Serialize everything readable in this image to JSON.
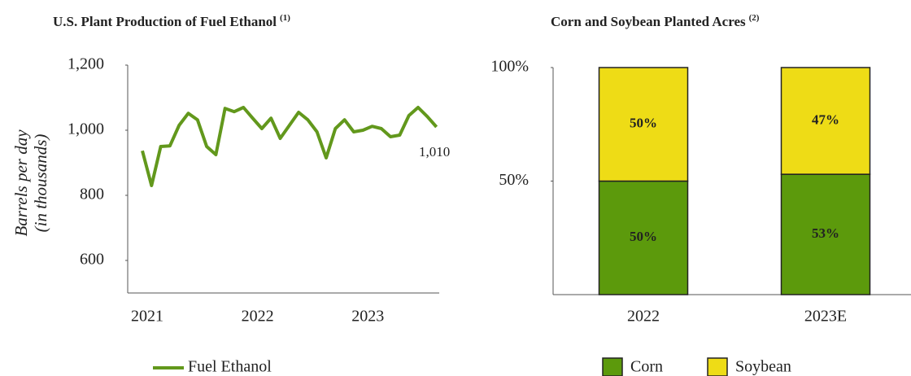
{
  "chart_data": [
    {
      "type": "line",
      "title": "U.S. Plant Production of Fuel Ethanol",
      "title_footnote": "(1)",
      "ylabel": [
        "Barrels per day",
        "(in thousands)"
      ],
      "categories": [
        "2021",
        null,
        null,
        null,
        null,
        null,
        null,
        null,
        null,
        null,
        null,
        null,
        "2022",
        null,
        null,
        null,
        null,
        null,
        null,
        null,
        null,
        null,
        null,
        null,
        "2023",
        null,
        null,
        null,
        null,
        null,
        null,
        null,
        null
      ],
      "series": [
        {
          "name": "Fuel Ethanol",
          "color": "#62981c",
          "values": [
            937,
            830,
            950,
            952,
            1015,
            1052,
            1032,
            950,
            925,
            1067,
            1057,
            1070,
            1037,
            1005,
            1037,
            975,
            1015,
            1055,
            1032,
            995,
            915,
            1005,
            1032,
            995,
            1000,
            1012,
            1005,
            980,
            985,
            1045,
            1070,
            1042,
            1010
          ]
        }
      ],
      "annotations": [
        {
          "text": "1,010",
          "value": 1010
        }
      ],
      "ylim": [
        500,
        1200
      ],
      "yticks": [
        {
          "value": 600,
          "label": "600"
        },
        {
          "value": 800,
          "label": "800"
        },
        {
          "value": 1000,
          "label": "1,000"
        },
        {
          "value": 1200,
          "label": "1,200"
        }
      ]
    },
    {
      "type": "stacked_bar",
      "title": "Corn and Soybean Planted Acres",
      "title_footnote": "(2)",
      "categories": [
        "2022",
        "2023E"
      ],
      "series": [
        {
          "name": "Corn",
          "color": "#5c9a0c",
          "values": [
            50,
            53
          ],
          "value_labels": [
            "50%",
            "53%"
          ],
          "label_color": "#ffffff"
        },
        {
          "name": "Soybean",
          "color": "#eedc16",
          "values": [
            50,
            47
          ],
          "value_labels": [
            "50%",
            "47%"
          ],
          "label_color": "#7a6c34"
        }
      ],
      "ylim": [
        0,
        100
      ],
      "yticks": [
        {
          "value": 50,
          "label": "50%"
        },
        {
          "value": 100,
          "label": "100%"
        }
      ]
    }
  ]
}
